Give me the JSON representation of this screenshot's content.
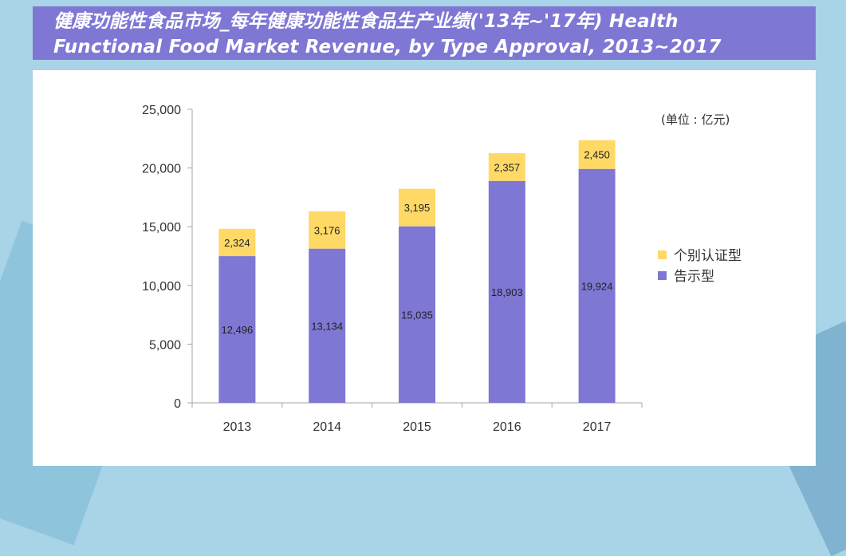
{
  "title": "健康功能性食品市场_每年健康功能性食品生产业绩('13年~'17年) Health Functional Food Market Revenue, by Type Approval, 2013~2017",
  "colors": {
    "title_bg": "#7f77d4",
    "series_generic": "#7f77d4",
    "series_individual": "#ffd966",
    "accent": "#ffd966"
  },
  "chart_data": {
    "type": "bar",
    "stacked": true,
    "categories": [
      "2013",
      "2014",
      "2015",
      "2016",
      "2017"
    ],
    "series": [
      {
        "name": "告示型",
        "values": [
          12496,
          13134,
          15035,
          18903,
          19924
        ],
        "labels": [
          "12,496",
          "13,134",
          "15,035",
          "18,903",
          "19,924"
        ]
      },
      {
        "name": "个别认证型",
        "values": [
          2324,
          3176,
          3195,
          2357,
          2450
        ],
        "labels": [
          "2,324",
          "3,176",
          "3,195",
          "2,357",
          "2,450"
        ]
      }
    ],
    "ylim": [
      0,
      25000
    ],
    "yticks": [
      "0",
      "5,000",
      "10,000",
      "15,000",
      "20,000",
      "25,000"
    ],
    "unit_label": "(单位 : 亿元)",
    "legend_position": "right",
    "grid": false
  }
}
